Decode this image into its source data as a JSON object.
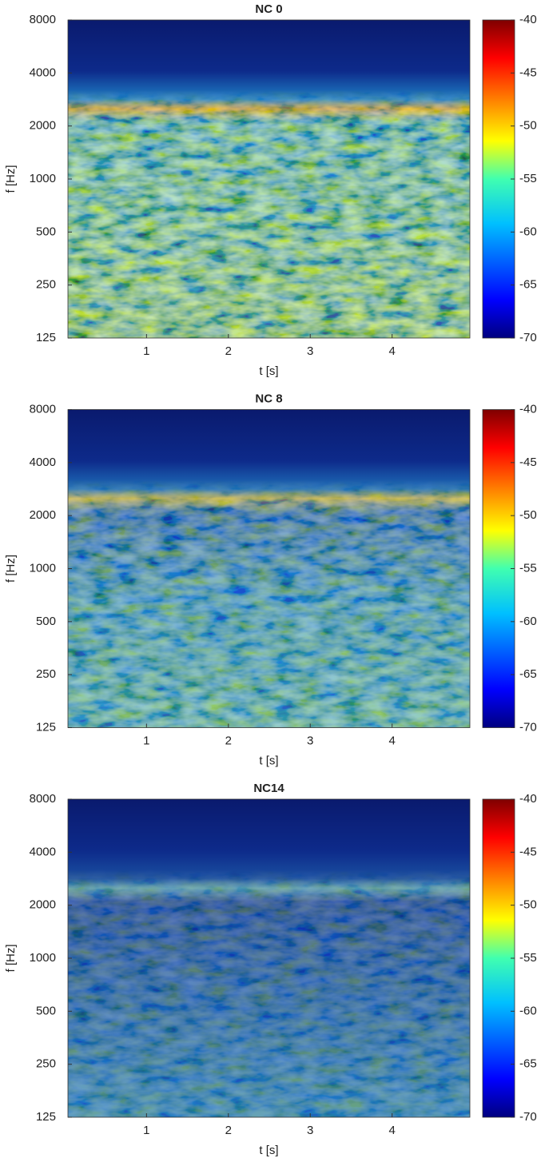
{
  "chart_data": [
    {
      "type": "spectrogram",
      "title": "NC 0",
      "xlabel": "t [s]",
      "ylabel": "f [Hz]",
      "xlim": [
        0.04,
        4.95
      ],
      "xticks": [
        1,
        2,
        3,
        4
      ],
      "ylim": [
        125,
        8000
      ],
      "yticks": [
        125,
        250,
        500,
        1000,
        2000,
        4000,
        8000
      ],
      "yscale": "log",
      "clim": [
        -70,
        -40
      ],
      "cticks": [
        -70,
        -65,
        -60,
        -55,
        -50,
        -45,
        -40
      ],
      "colormap": "jet"
    },
    {
      "type": "spectrogram",
      "title": "NC 8",
      "xlabel": "t [s]",
      "ylabel": "f [Hz]",
      "xlim": [
        0.04,
        4.95
      ],
      "xticks": [
        1,
        2,
        3,
        4
      ],
      "ylim": [
        125,
        8000
      ],
      "yticks": [
        125,
        250,
        500,
        1000,
        2000,
        4000,
        8000
      ],
      "yscale": "log",
      "clim": [
        -70,
        -40
      ],
      "cticks": [
        -70,
        -65,
        -60,
        -55,
        -50,
        -45,
        -40
      ],
      "colormap": "jet"
    },
    {
      "type": "spectrogram",
      "title": "NC14",
      "xlabel": "t [s]",
      "ylabel": "f [Hz]",
      "xlim": [
        0.04,
        4.95
      ],
      "xticks": [
        1,
        2,
        3,
        4
      ],
      "ylim": [
        125,
        8000
      ],
      "yticks": [
        125,
        250,
        500,
        1000,
        2000,
        4000,
        8000
      ],
      "yscale": "log",
      "clim": [
        -70,
        -40
      ],
      "cticks": [
        -70,
        -65,
        -60,
        -55,
        -50,
        -45,
        -40
      ],
      "colormap": "jet"
    }
  ]
}
